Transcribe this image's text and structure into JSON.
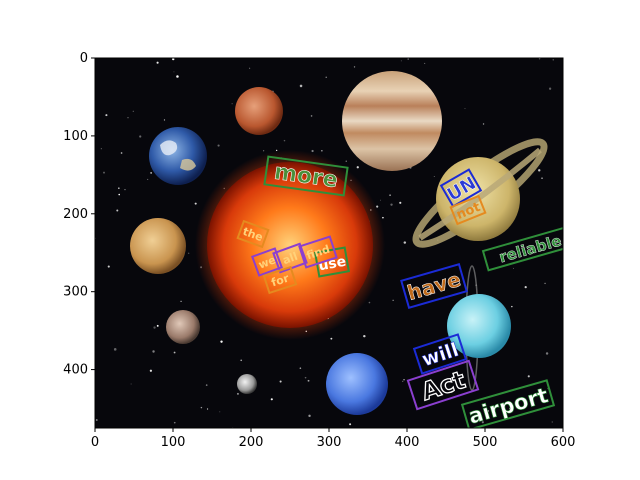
{
  "axes": {
    "x_ticks": [
      "0",
      "100",
      "200",
      "300",
      "400",
      "500",
      "600"
    ],
    "y_ticks": [
      "0",
      "100",
      "200",
      "300",
      "400"
    ],
    "x_range": [
      0,
      600
    ],
    "y_range": [
      475,
      0
    ],
    "grid": false
  },
  "image": {
    "background": "starfield",
    "objects": [
      "sun",
      "jupiter",
      "saturn",
      "mars",
      "earth",
      "venus",
      "uranus",
      "neptune",
      "moon",
      "mercury",
      "pluto"
    ]
  },
  "scene_text": [
    {
      "id": "more",
      "text": "more",
      "color": "#2f8f3a"
    },
    {
      "id": "un",
      "text": "UN",
      "color": "#1b2bd6"
    },
    {
      "id": "not",
      "text": "not",
      "color": "#e58a1f"
    },
    {
      "id": "reliable",
      "text": "reliable",
      "color": "#2f8f3a"
    },
    {
      "id": "have",
      "text": "have",
      "color": "#1b2bd6"
    },
    {
      "id": "will",
      "text": "will",
      "color": "#1b2bd6"
    },
    {
      "id": "act",
      "text": "Act",
      "color": "#8b3fd0"
    },
    {
      "id": "airport",
      "text": "airport",
      "color": "#2f8f3a"
    },
    {
      "id": "use",
      "text": "use",
      "color": "#2f8f3a"
    },
    {
      "id": "the",
      "text": "the",
      "color": "#e58a1f"
    },
    {
      "id": "pur1",
      "text": "we",
      "color": "#8b3fd0"
    },
    {
      "id": "pur2",
      "text": "all",
      "color": "#8b3fd0"
    },
    {
      "id": "pur3",
      "text": "find",
      "color": "#8b3fd0"
    },
    {
      "id": "ora2",
      "text": "for",
      "color": "#e58a1f"
    }
  ]
}
